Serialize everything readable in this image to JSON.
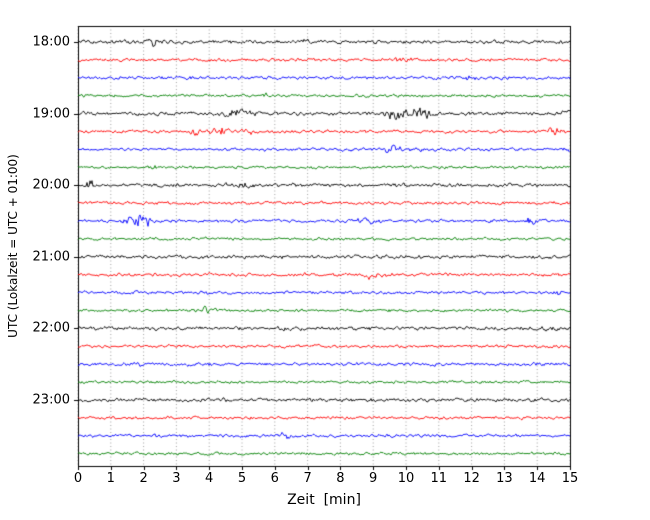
{
  "chart_data": {
    "type": "line",
    "subtype": "helicorder-seismogram",
    "title": "",
    "xlabel": "Zeit  [min]",
    "ylabel": "UTC (Lokalzeit = UTC + 01:00)",
    "xlim": [
      0,
      15
    ],
    "minutes_per_row": 15,
    "x_ticks": [
      "0",
      "1",
      "2",
      "3",
      "4",
      "5",
      "6",
      "7",
      "8",
      "9",
      "10",
      "11",
      "12",
      "13",
      "14",
      "15"
    ],
    "y_tick_labels": [
      "18:00",
      "19:00",
      "20:00",
      "21:00",
      "22:00",
      "23:00"
    ],
    "grid": "dotted-vertical-per-minute",
    "legend": "none",
    "trace_color_cycle": [
      "#000000",
      "#ff0000",
      "#0000ff",
      "#008000"
    ],
    "rows": [
      {
        "start": "18:00",
        "color": "#000000",
        "noise": 1.15,
        "events": [
          {
            "x": 2.35,
            "a": 2.0,
            "w": 0.18
          },
          {
            "x": 6.8,
            "a": 0.7,
            "w": 0.3
          }
        ]
      },
      {
        "start": "18:15",
        "color": "#ff0000",
        "noise": 1.0,
        "events": [
          {
            "x": 9.9,
            "a": 0.5,
            "w": 0.4
          }
        ]
      },
      {
        "start": "18:30",
        "color": "#0000ff",
        "noise": 1.0,
        "events": [
          {
            "x": 11.7,
            "a": 0.7,
            "w": 0.5
          }
        ]
      },
      {
        "start": "18:45",
        "color": "#008000",
        "noise": 0.9,
        "events": [
          {
            "x": 5.75,
            "a": 1.6,
            "w": 0.08
          }
        ]
      },
      {
        "start": "19:00",
        "color": "#000000",
        "noise": 1.15,
        "events": [
          {
            "x": 4.9,
            "a": 1.8,
            "w": 0.45
          },
          {
            "x": 9.8,
            "a": 3.0,
            "w": 0.35
          },
          {
            "x": 10.5,
            "a": 2.4,
            "w": 0.3
          },
          {
            "x": 14.9,
            "a": 1.2,
            "w": 0.12
          }
        ]
      },
      {
        "start": "19:15",
        "color": "#ff0000",
        "noise": 1.0,
        "events": [
          {
            "x": 3.6,
            "a": 1.5,
            "w": 0.15
          },
          {
            "x": 4.3,
            "a": 1.9,
            "w": 0.3
          },
          {
            "x": 5.2,
            "a": 1.1,
            "w": 0.2
          },
          {
            "x": 14.5,
            "a": 1.7,
            "w": 0.2
          }
        ]
      },
      {
        "start": "19:30",
        "color": "#0000ff",
        "noise": 1.0,
        "events": [
          {
            "x": 9.6,
            "a": 2.6,
            "w": 0.25
          },
          {
            "x": 10.3,
            "a": 1.1,
            "w": 0.2
          },
          {
            "x": 14.9,
            "a": 0.8,
            "w": 0.1
          }
        ]
      },
      {
        "start": "19:45",
        "color": "#008000",
        "noise": 0.9,
        "events": [
          {
            "x": 2.2,
            "a": 0.8,
            "w": 0.2
          }
        ]
      },
      {
        "start": "20:00",
        "color": "#000000",
        "noise": 1.15,
        "events": [
          {
            "x": 0.35,
            "a": 2.6,
            "w": 0.12
          },
          {
            "x": 5.0,
            "a": 1.3,
            "w": 0.4
          }
        ]
      },
      {
        "start": "20:15",
        "color": "#ff0000",
        "noise": 1.0,
        "events": [
          {
            "x": 8.6,
            "a": 0.7,
            "w": 0.3
          }
        ]
      },
      {
        "start": "20:30",
        "color": "#0000ff",
        "noise": 1.0,
        "events": [
          {
            "x": 1.75,
            "a": 3.8,
            "w": 0.3
          },
          {
            "x": 2.15,
            "a": 2.2,
            "w": 0.2
          },
          {
            "x": 8.7,
            "a": 1.5,
            "w": 0.35
          },
          {
            "x": 13.75,
            "a": 2.0,
            "w": 0.15
          }
        ]
      },
      {
        "start": "20:45",
        "color": "#008000",
        "noise": 0.9,
        "events": []
      },
      {
        "start": "21:00",
        "color": "#000000",
        "noise": 1.15,
        "events": []
      },
      {
        "start": "21:15",
        "color": "#ff0000",
        "noise": 1.0,
        "events": [
          {
            "x": 8.8,
            "a": 2.1,
            "w": 0.25
          },
          {
            "x": 9.35,
            "a": 1.5,
            "w": 0.18
          }
        ]
      },
      {
        "start": "21:30",
        "color": "#0000ff",
        "noise": 1.0,
        "events": [
          {
            "x": 7.0,
            "a": 1.4,
            "w": 0.08
          },
          {
            "x": 14.6,
            "a": 1.6,
            "w": 0.12
          }
        ]
      },
      {
        "start": "21:45",
        "color": "#008000",
        "noise": 0.9,
        "events": [
          {
            "x": 3.85,
            "a": 2.5,
            "w": 0.12
          },
          {
            "x": 4.15,
            "a": 1.3,
            "w": 0.15
          }
        ]
      },
      {
        "start": "22:00",
        "color": "#000000",
        "noise": 1.15,
        "events": [
          {
            "x": 14.5,
            "a": 1.0,
            "w": 0.2
          }
        ]
      },
      {
        "start": "22:15",
        "color": "#ff0000",
        "noise": 1.0,
        "events": []
      },
      {
        "start": "22:30",
        "color": "#0000ff",
        "noise": 1.0,
        "events": [
          {
            "x": 1.8,
            "a": 0.6,
            "w": 0.2
          }
        ]
      },
      {
        "start": "22:45",
        "color": "#008000",
        "noise": 0.9,
        "events": []
      },
      {
        "start": "23:00",
        "color": "#000000",
        "noise": 1.15,
        "events": []
      },
      {
        "start": "23:15",
        "color": "#ff0000",
        "noise": 1.0,
        "events": []
      },
      {
        "start": "23:30",
        "color": "#0000ff",
        "noise": 1.0,
        "events": [
          {
            "x": 2.5,
            "a": 0.6,
            "w": 0.1
          },
          {
            "x": 6.35,
            "a": 1.7,
            "w": 0.15
          }
        ]
      },
      {
        "start": "23:45",
        "color": "#008000",
        "noise": 0.9,
        "events": []
      }
    ]
  }
}
